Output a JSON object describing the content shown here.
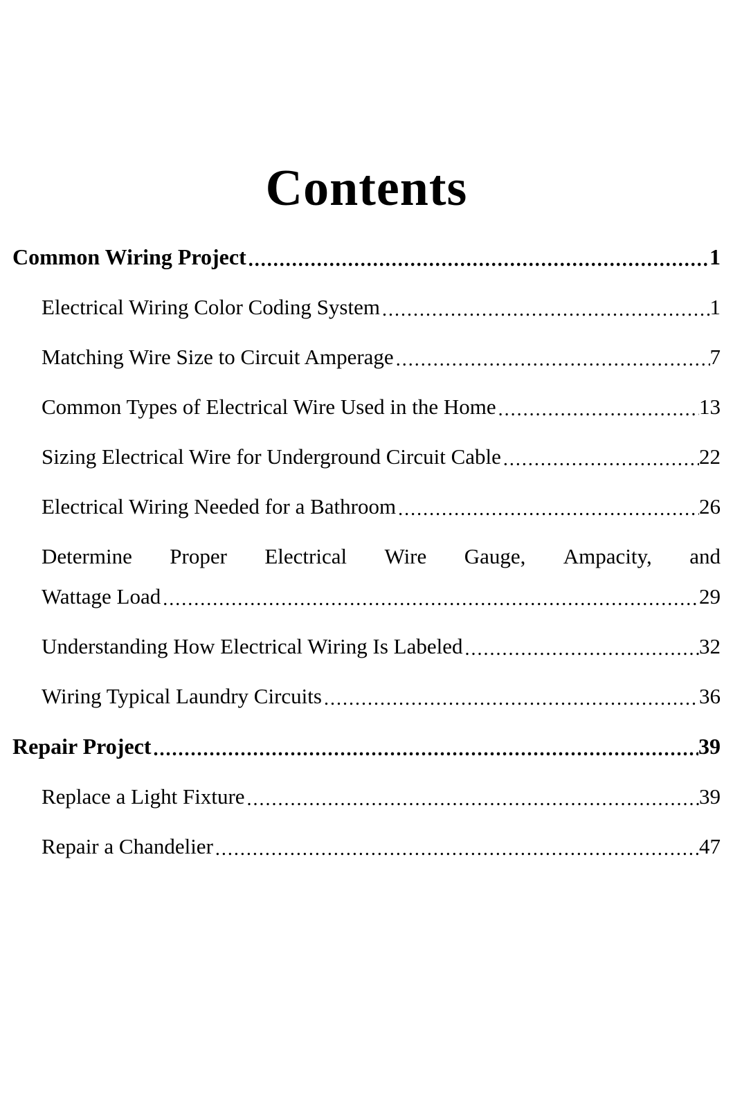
{
  "title": "Contents",
  "dots": "...........................................................................................................................................................",
  "sections": [
    {
      "label": "Common Wiring Project",
      "page": "1",
      "entries": [
        {
          "label": "Electrical Wiring Color Coding System",
          "page": "1"
        },
        {
          "label": "Matching Wire Size to Circuit Amperage",
          "page": "7"
        },
        {
          "label": "Common Types of Electrical Wire Used in the Home",
          "page": "13"
        },
        {
          "label": "Sizing Electrical Wire for Underground Circuit Cable",
          "page": "22"
        },
        {
          "label": "Electrical Wiring Needed for a Bathroom",
          "page": "26"
        },
        {
          "multiline": true,
          "line1_words": [
            "Determine",
            "Proper",
            "Electrical",
            "Wire",
            "Gauge,",
            "Ampacity,",
            "and"
          ],
          "line2_label": "Wattage Load",
          "page": "29"
        },
        {
          "label": "Understanding How Electrical Wiring Is Labeled",
          "page": "32"
        },
        {
          "label": "Wiring Typical Laundry Circuits",
          "page": "36"
        }
      ]
    },
    {
      "label": "Repair Project",
      "page": "39",
      "entries": [
        {
          "label": "Replace a Light Fixture",
          "page": "39"
        },
        {
          "label": "Repair a Chandelier",
          "page": "47"
        }
      ]
    }
  ],
  "colors": {
    "background": "#ffffff",
    "text": "#000000"
  }
}
